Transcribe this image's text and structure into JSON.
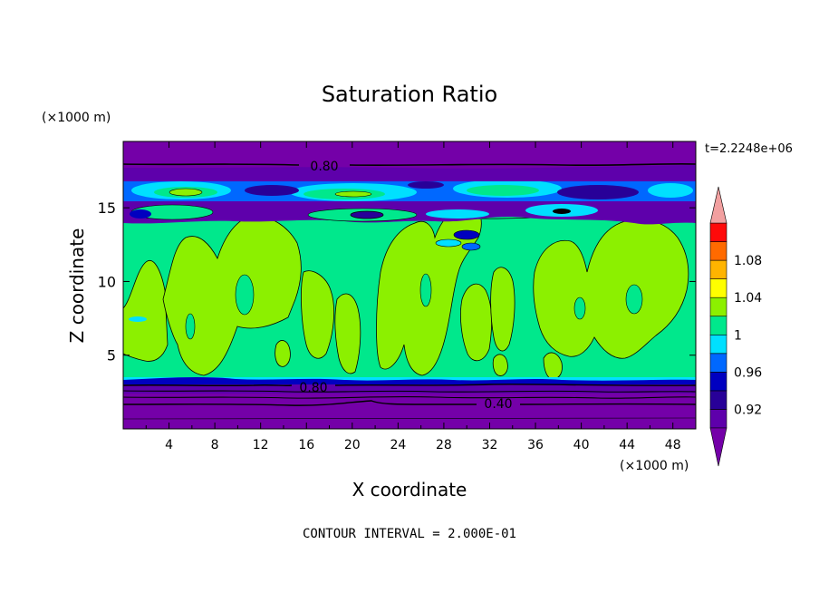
{
  "chart_data": {
    "type": "heatmap",
    "title": "Saturation Ratio",
    "xlabel": "X coordinate",
    "ylabel": "Z coordinate",
    "x_unit": "(×1000 m)",
    "y_unit": "(×1000 m)",
    "time_label": "t=2.2248e+06",
    "footer": "CONTOUR INTERVAL = 2.000E-01",
    "xlim": [
      0,
      50
    ],
    "ylim": [
      0,
      19.5
    ],
    "x_ticks": [
      "4",
      "8",
      "12",
      "16",
      "20",
      "24",
      "28",
      "32",
      "36",
      "40",
      "44",
      "48"
    ],
    "y_ticks": [
      "5",
      "10",
      "15"
    ],
    "colorbar": {
      "levels": [
        0.9,
        0.92,
        0.94,
        0.96,
        0.98,
        1.0,
        1.02,
        1.04,
        1.06,
        1.08,
        1.1
      ],
      "tick_labels": [
        "0.92",
        "0.96",
        "1",
        "1.04",
        "1.08"
      ],
      "colors": [
        "#5e00ab",
        "#280098",
        "#0000c0",
        "#0068ff",
        "#00e0ff",
        "#00e88c",
        "#8cf000",
        "#ffff00",
        "#ffb400",
        "#ff6a00",
        "#ff0a0a"
      ],
      "under_color": "#7400a8",
      "over_color": "#f2a0a0"
    },
    "contour_labels": [
      {
        "value": "0.80",
        "x": 17.5,
        "z": 18.2
      },
      {
        "value": "0.80",
        "x": 16.5,
        "z": 2.9
      },
      {
        "value": "0.40",
        "x": 32.5,
        "z": 1.8
      }
    ],
    "bands": [
      {
        "z_range": [
          0,
          1.8
        ],
        "level": "<0.40"
      },
      {
        "z_range": [
          1.8,
          3.4
        ],
        "level": "0.40-0.90"
      },
      {
        "z_range": [
          3.4,
          3.7
        ],
        "level": "0.96-0.98"
      },
      {
        "z_range": [
          3.7,
          13.5
        ],
        "level": "0.98-1.02 (mixed)"
      },
      {
        "z_range": [
          13.5,
          15.6
        ],
        "level": "0.90-1.00 (mixed)"
      },
      {
        "z_range": [
          15.6,
          17.7
        ],
        "level": "0.92-1.00 (mixed)"
      },
      {
        "z_range": [
          17.7,
          19.5
        ],
        "level": "<0.90"
      }
    ]
  }
}
